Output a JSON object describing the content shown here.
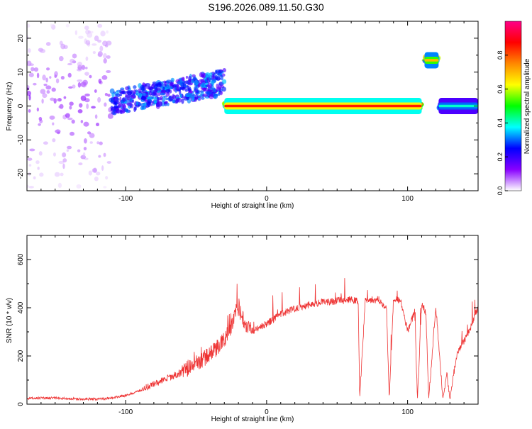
{
  "title": "S196.2026.089.11.50.G30",
  "colors": {
    "snr_line": "#ee3333",
    "axis": "#000000",
    "background": "#ffffff"
  },
  "chart_data": [
    {
      "type": "heatmap",
      "xlabel": "Height of straight line (km)",
      "ylabel": "Frequency (Hz)",
      "xlim": [
        -170,
        150
      ],
      "ylim": [
        -25,
        25
      ],
      "xticks": [
        -100,
        0,
        100
      ],
      "yticks": [
        -20,
        -10,
        0,
        10,
        20
      ],
      "colorbar": {
        "label": "Normalized spectral amplitude",
        "range": [
          0,
          1
        ],
        "ticks": [
          0.0,
          0.2,
          0.4,
          0.6,
          0.8
        ],
        "tick_labels": [
          "0.0",
          "0.2",
          "0.4",
          "0.6",
          "0.8"
        ],
        "colormap": [
          "#ffffff",
          "#8800ff",
          "#0000ff",
          "#00ffff",
          "#00ff00",
          "#ffff00",
          "#ff8800",
          "#ff0000",
          "#ff0088"
        ]
      },
      "segments": [
        {
          "x_start": -170,
          "x_end": -110,
          "freq_center": 0,
          "freq_spread": 24,
          "amplitude": 0.15,
          "description": "noise"
        },
        {
          "x_start": -110,
          "x_end": -30,
          "freq_center": 3,
          "freq_spread": 6,
          "amplitude": 0.35
        },
        {
          "x_start": -30,
          "x_end": 110,
          "freq_center": 0,
          "freq_spread": 1.5,
          "amplitude": 0.85
        },
        {
          "x_start": 112,
          "x_end": 122,
          "freq_center": 13.5,
          "freq_spread": 1.5,
          "amplitude": 0.7
        },
        {
          "x_start": 122,
          "x_end": 150,
          "freq_center": 0,
          "freq_spread": 1.5,
          "amplitude": 0.4
        }
      ]
    },
    {
      "type": "line",
      "xlabel": "Height of straight line (km)",
      "ylabel": "SNR (10 * v/v)",
      "xlim": [
        -170,
        150
      ],
      "ylim": [
        0,
        700
      ],
      "xticks": [
        -100,
        0,
        100
      ],
      "yticks": [
        0,
        200,
        400,
        600
      ],
      "series": [
        {
          "name": "SNR",
          "x": [
            -170,
            -160,
            -150,
            -140,
            -130,
            -120,
            -110,
            -100,
            -90,
            -80,
            -70,
            -60,
            -50,
            -40,
            -30,
            -25,
            -20,
            -15,
            -10,
            0,
            10,
            20,
            30,
            40,
            50,
            60,
            65,
            66,
            70,
            80,
            85,
            87,
            90,
            95,
            100,
            105,
            107,
            110,
            113,
            115,
            120,
            125,
            128,
            130,
            135,
            140,
            145,
            150
          ],
          "y": [
            22,
            25,
            24,
            22,
            20,
            20,
            25,
            35,
            55,
            80,
            105,
            130,
            160,
            200,
            260,
            320,
            390,
            330,
            300,
            330,
            370,
            395,
            410,
            420,
            425,
            430,
            425,
            20,
            430,
            430,
            395,
            20,
            440,
            425,
            300,
            380,
            20,
            420,
            370,
            20,
            405,
            25,
            120,
            20,
            210,
            260,
            320,
            400
          ]
        }
      ]
    }
  ]
}
